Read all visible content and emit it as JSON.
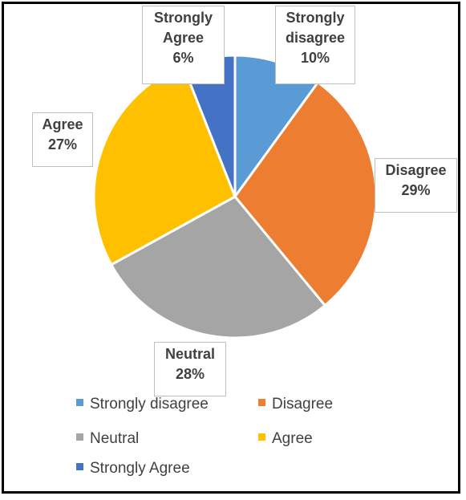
{
  "chart_data": {
    "type": "pie",
    "title": "",
    "categories": [
      "Strongly disagree",
      "Disagree",
      "Neutral",
      "Agree",
      "Strongly Agree"
    ],
    "values": [
      10,
      29,
      28,
      27,
      6
    ],
    "value_labels": [
      "10%",
      "29%",
      "28%",
      "27%",
      "6%"
    ],
    "label_names": [
      "Strongly disagree",
      "Disagree",
      "Neutral",
      "Agree",
      "Strongly Agree"
    ],
    "colors": [
      "#5b9bd5",
      "#ed7d31",
      "#a5a5a5",
      "#ffc000",
      "#4472c4"
    ],
    "start_angle_deg": 0,
    "direction": "clockwise",
    "legend": {
      "position": "bottom",
      "items": [
        "Strongly disagree",
        "Disagree",
        "Neutral",
        "Agree",
        "Strongly Agree"
      ]
    }
  }
}
